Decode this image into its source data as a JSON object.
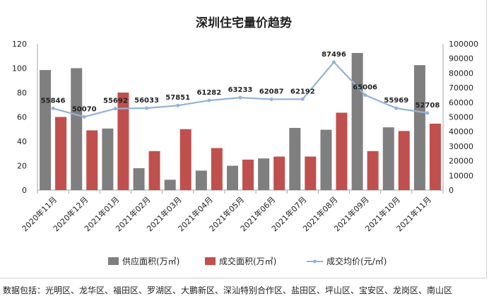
{
  "chart_data": {
    "type": "bar+line",
    "title": "深圳住宅量价趋势",
    "categories": [
      "2020年11月",
      "2020年12月",
      "2021年01月",
      "2021年02月",
      "2021年03月",
      "2021年04月",
      "2021年05月",
      "2021年06月",
      "2021年07月",
      "2021年08月",
      "2021年09月",
      "2021年10月",
      "2021年11月"
    ],
    "series": [
      {
        "name": "供应面积(万㎡)",
        "type": "bar",
        "axis": "left",
        "color": "#7f7f7f",
        "values": [
          98.5,
          100,
          50.5,
          18,
          8.5,
          16,
          20,
          26,
          51,
          49.5,
          112.5,
          51.5,
          102.5
        ]
      },
      {
        "name": "成交面积(万㎡)",
        "type": "bar",
        "axis": "left",
        "color": "#c0504d",
        "values": [
          60,
          49,
          80,
          32,
          50,
          34.5,
          25,
          27.5,
          27.5,
          63.5,
          32,
          48.5,
          54.5
        ]
      },
      {
        "name": "成交均价(元/㎡)",
        "type": "line",
        "axis": "right",
        "color": "#95b3d7",
        "values": [
          55846,
          50070,
          55692,
          56033,
          57851,
          61282,
          63233,
          62087,
          62192,
          87496,
          65006,
          55969,
          52708
        ],
        "labels": [
          "55846",
          "50070",
          "55692",
          "56033",
          "57851",
          "61282",
          "63233",
          "62087",
          "62192",
          "87496",
          "65006",
          "55969",
          "52708"
        ]
      }
    ],
    "y_left": {
      "min": 0,
      "max": 120,
      "ticks": [
        "0",
        "20",
        "40",
        "60",
        "80",
        "100",
        "120"
      ]
    },
    "y_right": {
      "min": 0,
      "max": 100000,
      "ticks": [
        "0",
        "10000",
        "20000",
        "30000",
        "40000",
        "50000",
        "60000",
        "70000",
        "80000",
        "90000",
        "100000"
      ]
    },
    "grid": false,
    "legend": "bottom"
  },
  "footnote": "数据包括：光明区、龙华区、福田区、罗湖区、大鹏新区、深汕特别合作区、盐田区、坪山区、宝安区、龙岗区、南山区"
}
